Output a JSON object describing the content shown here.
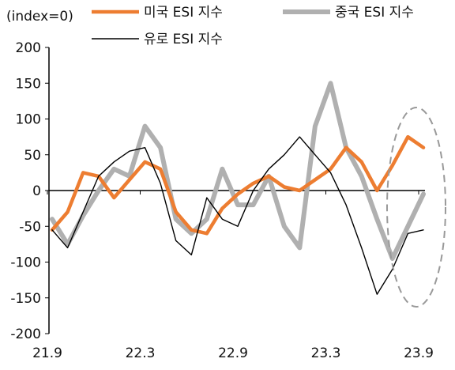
{
  "chart_data": {
    "type": "line",
    "ylabel": "(index=0)",
    "ylim": [
      -200,
      200
    ],
    "y_ticks": [
      200,
      150,
      100,
      50,
      0,
      -50,
      -100,
      -150,
      -200
    ],
    "x_tick_labels": [
      "21.9",
      "22.3",
      "22.9",
      "23.3",
      "23.9"
    ],
    "x_range_months": [
      "2021-09",
      "2023-09"
    ],
    "legend_position": "top",
    "zero_line": true,
    "annotation": "dashed ellipse around latest readings",
    "series": [
      {
        "name": "미국 ESI 지수",
        "color": "#ED7D31",
        "points": [
          [
            "2021-09",
            -55
          ],
          [
            "2021-10",
            -30
          ],
          [
            "2021-11",
            25
          ],
          [
            "2021-12",
            20
          ],
          [
            "2022-01",
            -10
          ],
          [
            "2022-02",
            15
          ],
          [
            "2022-03",
            40
          ],
          [
            "2022-04",
            30
          ],
          [
            "2022-05",
            -30
          ],
          [
            "2022-06",
            -55
          ],
          [
            "2022-07",
            -60
          ],
          [
            "2022-08",
            -25
          ],
          [
            "2022-09",
            -5
          ],
          [
            "2022-10",
            10
          ],
          [
            "2022-11",
            20
          ],
          [
            "2022-12",
            5
          ],
          [
            "2023-01",
            0
          ],
          [
            "2023-02",
            15
          ],
          [
            "2023-03",
            30
          ],
          [
            "2023-04",
            60
          ],
          [
            "2023-05",
            40
          ],
          [
            "2023-06",
            0
          ],
          [
            "2023-07",
            35
          ],
          [
            "2023-08",
            75
          ],
          [
            "2023-09",
            60
          ]
        ]
      },
      {
        "name": "중국 ESI 지수",
        "color": "#B0B0B0",
        "points": [
          [
            "2021-09",
            -40
          ],
          [
            "2021-10",
            -75
          ],
          [
            "2021-11",
            -35
          ],
          [
            "2021-12",
            0
          ],
          [
            "2022-01",
            30
          ],
          [
            "2022-02",
            20
          ],
          [
            "2022-03",
            90
          ],
          [
            "2022-04",
            60
          ],
          [
            "2022-05",
            -40
          ],
          [
            "2022-06",
            -60
          ],
          [
            "2022-07",
            -40
          ],
          [
            "2022-08",
            30
          ],
          [
            "2022-09",
            -20
          ],
          [
            "2022-10",
            -20
          ],
          [
            "2022-11",
            20
          ],
          [
            "2022-12",
            -50
          ],
          [
            "2023-01",
            -80
          ],
          [
            "2023-02",
            90
          ],
          [
            "2023-03",
            150
          ],
          [
            "2023-04",
            60
          ],
          [
            "2023-05",
            20
          ],
          [
            "2023-06",
            -40
          ],
          [
            "2023-07",
            -95
          ],
          [
            "2023-08",
            -50
          ],
          [
            "2023-09",
            -5
          ]
        ]
      },
      {
        "name": "유로 ESI 지수",
        "color": "#000000",
        "points": [
          [
            "2021-09",
            -55
          ],
          [
            "2021-10",
            -80
          ],
          [
            "2021-11",
            -30
          ],
          [
            "2021-12",
            20
          ],
          [
            "2022-01",
            40
          ],
          [
            "2022-02",
            55
          ],
          [
            "2022-03",
            60
          ],
          [
            "2022-04",
            10
          ],
          [
            "2022-05",
            -70
          ],
          [
            "2022-06",
            -90
          ],
          [
            "2022-07",
            -10
          ],
          [
            "2022-08",
            -40
          ],
          [
            "2022-09",
            -50
          ],
          [
            "2022-10",
            0
          ],
          [
            "2022-11",
            30
          ],
          [
            "2022-12",
            50
          ],
          [
            "2023-01",
            75
          ],
          [
            "2023-02",
            50
          ],
          [
            "2023-03",
            25
          ],
          [
            "2023-04",
            -20
          ],
          [
            "2023-05",
            -80
          ],
          [
            "2023-06",
            -145
          ],
          [
            "2023-07",
            -110
          ],
          [
            "2023-08",
            -60
          ],
          [
            "2023-09",
            -55
          ]
        ]
      }
    ]
  }
}
